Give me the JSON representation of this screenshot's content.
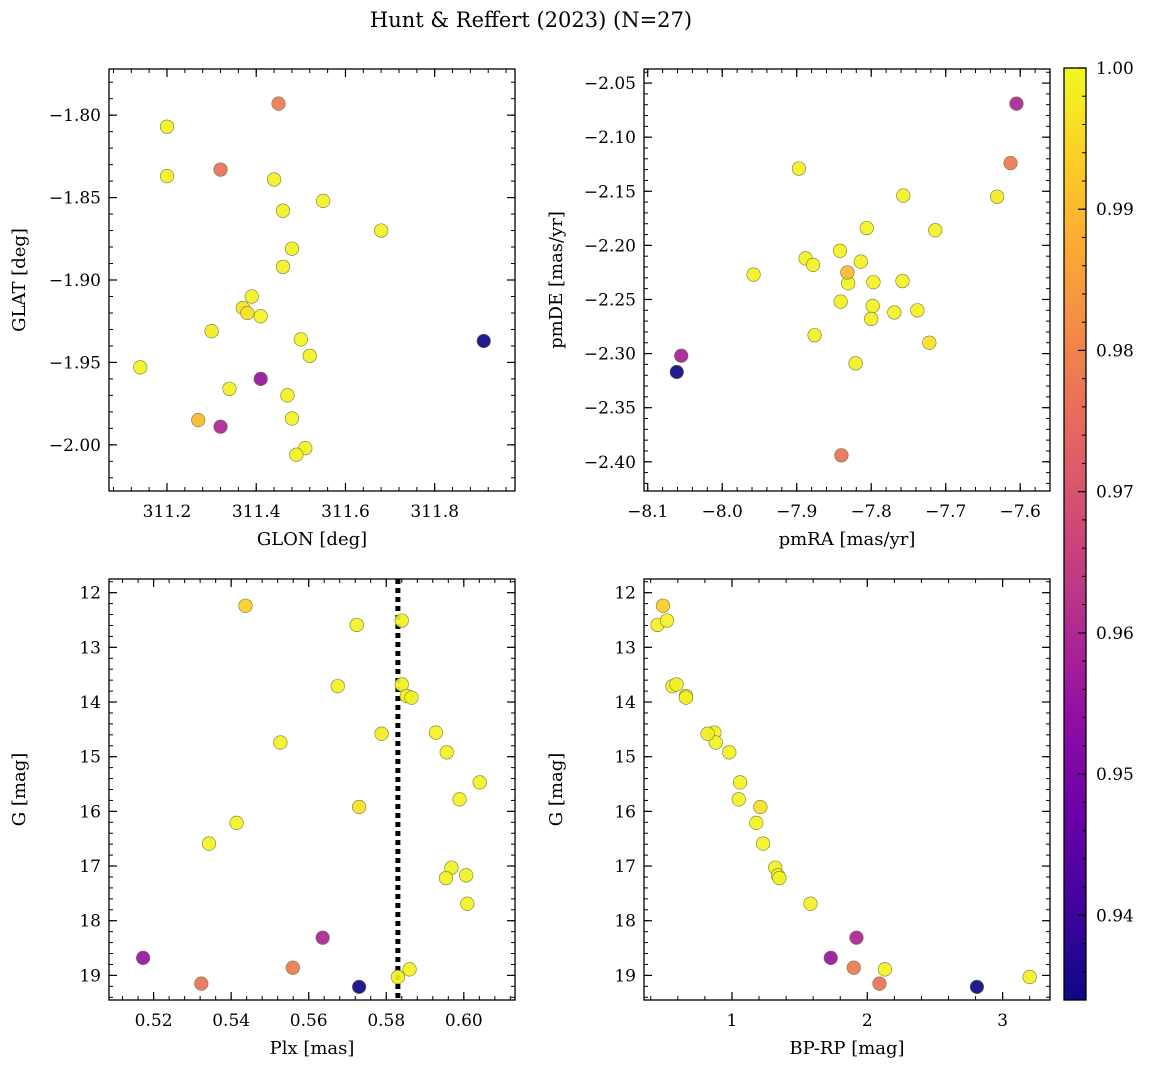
{
  "figure": {
    "title": "Hunt & Reffert (2023) (N=27)"
  },
  "colorbar": {
    "vmin": 0.934,
    "vmax": 1.0,
    "ticks": [
      0.94,
      0.95,
      0.96,
      0.97,
      0.98,
      0.99,
      1.0
    ],
    "tick_labels": [
      "0.94",
      "0.95",
      "0.96",
      "0.97",
      "0.98",
      "0.99",
      "1.00"
    ],
    "colormap": "plasma"
  },
  "chart_data": [
    {
      "type": "scatter",
      "name": "sky",
      "xlabel": "GLON [deg]",
      "ylabel": "GLAT [deg]",
      "xlim": [
        311.07,
        311.98
      ],
      "ylim": [
        -2.028,
        -1.772
      ],
      "xticks": [
        311.2,
        311.4,
        311.6,
        311.8
      ],
      "xtick_labels": [
        "311.2",
        "311.4",
        "311.6",
        "311.8"
      ],
      "yticks": [
        -1.8,
        -1.85,
        -1.9,
        -1.95,
        -2.0
      ],
      "ytick_labels": [
        "−1.80",
        "−1.85",
        "−1.90",
        "−1.95",
        "−2.00"
      ],
      "x": [
        311.45,
        311.2,
        311.32,
        311.2,
        311.44,
        311.55,
        311.46,
        311.68,
        311.48,
        311.46,
        311.39,
        311.37,
        311.38,
        311.41,
        311.3,
        311.5,
        311.14,
        311.52,
        311.91,
        311.41,
        311.34,
        311.47,
        311.48,
        311.27,
        311.32,
        311.51,
        311.49
      ],
      "y": [
        -1.793,
        -1.807,
        -1.833,
        -1.837,
        -1.839,
        -1.852,
        -1.858,
        -1.87,
        -1.881,
        -1.892,
        -1.91,
        -1.917,
        -1.92,
        -1.922,
        -1.931,
        -1.936,
        -1.953,
        -1.946,
        -1.937,
        -1.96,
        -1.966,
        -1.97,
        -1.984,
        -1.985,
        -1.989,
        -2.002,
        -2.006
      ],
      "c": [
        0.978,
        0.999,
        0.976,
        0.999,
        0.999,
        0.999,
        0.999,
        0.999,
        0.999,
        0.999,
        0.999,
        0.997,
        0.996,
        0.999,
        0.998,
        0.999,
        0.999,
        0.999,
        0.934,
        0.955,
        0.999,
        0.999,
        0.999,
        0.99,
        0.959,
        0.999,
        0.999
      ]
    },
    {
      "type": "scatter",
      "name": "proper-motion",
      "xlabel": "pmRA [mas/yr]",
      "ylabel": "pmDE [mas/yr]",
      "xlim": [
        -8.105,
        -7.56
      ],
      "ylim": [
        -2.427,
        -2.037
      ],
      "xticks": [
        -8.1,
        -8.0,
        -7.9,
        -7.8,
        -7.7,
        -7.6
      ],
      "xtick_labels": [
        "−8.1",
        "−8.0",
        "−7.9",
        "−7.8",
        "−7.7",
        "−7.6"
      ],
      "yticks": [
        -2.05,
        -2.1,
        -2.15,
        -2.2,
        -2.25,
        -2.3,
        -2.35,
        -2.4
      ],
      "ytick_labels": [
        "−2.05",
        "−2.10",
        "−2.15",
        "−2.20",
        "−2.25",
        "−2.30",
        "−2.35",
        "−2.40"
      ],
      "x": [
        -7.605,
        -7.613,
        -7.897,
        -7.757,
        -7.631,
        -7.806,
        -7.714,
        -7.842,
        -7.814,
        -7.888,
        -7.878,
        -7.958,
        -7.832,
        -7.797,
        -7.831,
        -7.758,
        -7.841,
        -7.798,
        -7.738,
        -7.769,
        -7.8,
        -7.876,
        -7.722,
        -7.821,
        -8.055,
        -8.061,
        -7.84
      ],
      "y": [
        -2.069,
        -2.124,
        -2.129,
        -2.154,
        -2.155,
        -2.184,
        -2.186,
        -2.205,
        -2.215,
        -2.212,
        -2.218,
        -2.227,
        -2.225,
        -2.234,
        -2.235,
        -2.233,
        -2.252,
        -2.256,
        -2.26,
        -2.262,
        -2.268,
        -2.283,
        -2.29,
        -2.309,
        -2.302,
        -2.317,
        -2.394
      ],
      "c": [
        0.959,
        0.978,
        0.999,
        0.999,
        0.998,
        0.999,
        0.999,
        0.999,
        0.999,
        0.999,
        0.999,
        0.999,
        0.99,
        0.999,
        0.999,
        0.999,
        0.999,
        0.999,
        0.999,
        0.999,
        0.999,
        0.999,
        0.996,
        0.999,
        0.958,
        0.934,
        0.976
      ]
    },
    {
      "type": "scatter",
      "name": "parallax-magnitude",
      "xlabel": "Plx [mas]",
      "ylabel": "G [mag]",
      "xlim": [
        0.5085,
        0.6132
      ],
      "ylim": [
        19.45,
        11.75
      ],
      "y_inverted": true,
      "xticks": [
        0.52,
        0.54,
        0.56,
        0.58,
        0.6
      ],
      "xtick_labels": [
        "0.52",
        "0.54",
        "0.56",
        "0.58",
        "0.60"
      ],
      "yticks": [
        12,
        13,
        14,
        15,
        16,
        17,
        18,
        19
      ],
      "ytick_labels": [
        "12",
        "13",
        "14",
        "15",
        "16",
        "17",
        "18",
        "19"
      ],
      "vline": {
        "x": 0.583,
        "style": "dotted"
      },
      "x": [
        0.5437,
        0.5724,
        0.584,
        0.5675,
        0.584,
        0.5853,
        0.5865,
        0.5788,
        0.5928,
        0.5527,
        0.5956,
        0.6041,
        0.5989,
        0.573,
        0.5414,
        0.5343,
        0.5968,
        0.6006,
        0.5954,
        0.6009,
        0.5636,
        0.5173,
        0.5559,
        0.586,
        0.583,
        0.5323,
        0.573
      ],
      "y": [
        12.24,
        12.59,
        12.51,
        13.71,
        13.68,
        13.89,
        13.92,
        14.58,
        14.56,
        14.74,
        14.92,
        15.47,
        15.78,
        15.92,
        16.21,
        16.59,
        17.03,
        17.17,
        17.22,
        17.69,
        18.31,
        18.68,
        18.86,
        18.89,
        19.03,
        19.15,
        19.21
      ],
      "c": [
        0.993,
        0.999,
        0.999,
        0.999,
        0.999,
        0.999,
        0.999,
        0.998,
        0.999,
        0.999,
        0.999,
        0.999,
        0.999,
        0.996,
        0.999,
        0.999,
        0.999,
        0.999,
        0.999,
        0.999,
        0.959,
        0.955,
        0.978,
        0.999,
        0.999,
        0.976,
        0.934
      ]
    },
    {
      "type": "scatter",
      "name": "colour-magnitude",
      "xlabel": "BP-RP [mag]",
      "ylabel": "G [mag]",
      "xlim": [
        0.35,
        3.35
      ],
      "ylim": [
        19.45,
        11.75
      ],
      "y_inverted": true,
      "xticks": [
        1,
        2,
        3
      ],
      "xtick_labels": [
        "1",
        "2",
        "3"
      ],
      "yticks": [
        12,
        13,
        14,
        15,
        16,
        17,
        18,
        19
      ],
      "ytick_labels": [
        "12",
        "13",
        "14",
        "15",
        "16",
        "17",
        "18",
        "19"
      ],
      "x": [
        0.49,
        0.45,
        0.52,
        0.56,
        0.59,
        0.66,
        0.66,
        0.82,
        0.87,
        0.88,
        0.98,
        1.06,
        1.05,
        1.21,
        1.18,
        1.23,
        1.32,
        1.34,
        1.35,
        1.58,
        1.92,
        1.73,
        1.9,
        2.13,
        3.2,
        2.09,
        2.81
      ],
      "y": [
        12.24,
        12.59,
        12.51,
        13.71,
        13.68,
        13.89,
        13.92,
        14.58,
        14.56,
        14.74,
        14.92,
        15.47,
        15.78,
        15.92,
        16.21,
        16.59,
        17.03,
        17.17,
        17.22,
        17.69,
        18.31,
        18.68,
        18.86,
        18.89,
        19.03,
        19.15,
        19.21
      ],
      "c": [
        0.993,
        0.999,
        0.999,
        0.999,
        0.999,
        0.999,
        0.999,
        0.998,
        0.999,
        0.999,
        0.999,
        0.999,
        0.999,
        0.996,
        0.999,
        0.999,
        0.999,
        0.999,
        0.999,
        0.999,
        0.959,
        0.955,
        0.978,
        0.999,
        0.999,
        0.976,
        0.934
      ]
    }
  ]
}
